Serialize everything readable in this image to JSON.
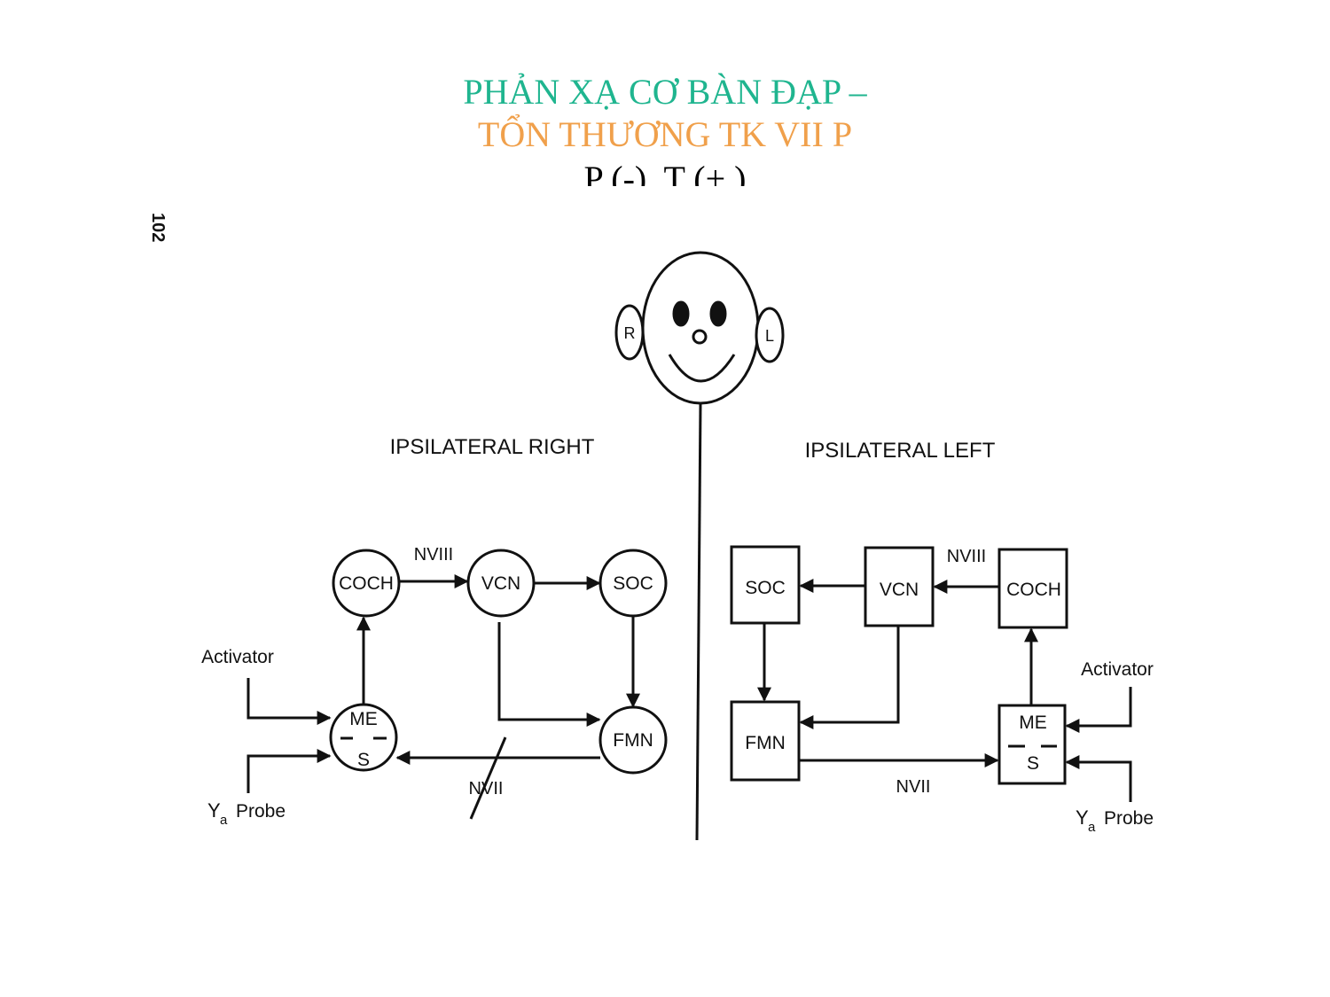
{
  "slide": {
    "title_line1": "PHẢN XẠ CƠ BÀN ĐẠP –",
    "title_line2": "TỔN THƯƠNG TK VII P",
    "title_line3": "P (-), T (+ )",
    "title_line1_color": "#1fb58f",
    "title_line2_color": "#f0a04b"
  },
  "diagram": {
    "page_number": "102",
    "face": {
      "right_ear": "R",
      "left_ear": "L"
    },
    "right_side": {
      "heading": "IPSILATERAL RIGHT",
      "nodes": {
        "coch": "COCH",
        "vcn": "VCN",
        "soc": "SOC",
        "fmn": "FMN",
        "me": "ME",
        "s": "S"
      },
      "nerve_viii": "NVIII",
      "nerve_vii": "NVII",
      "activator": "Activator",
      "probe_y": "Y",
      "probe_sub": "a",
      "probe_label": "Probe"
    },
    "left_side": {
      "heading": "IPSILATERAL LEFT",
      "nodes": {
        "coch": "COCH",
        "vcn": "VCN",
        "soc": "SOC",
        "fmn": "FMN",
        "me": "ME",
        "s": "S"
      },
      "nerve_viii": "NVIII",
      "nerve_vii": "NVII",
      "activator": "Activator",
      "probe_y": "Y",
      "probe_sub": "a",
      "probe_label": "Probe"
    }
  }
}
